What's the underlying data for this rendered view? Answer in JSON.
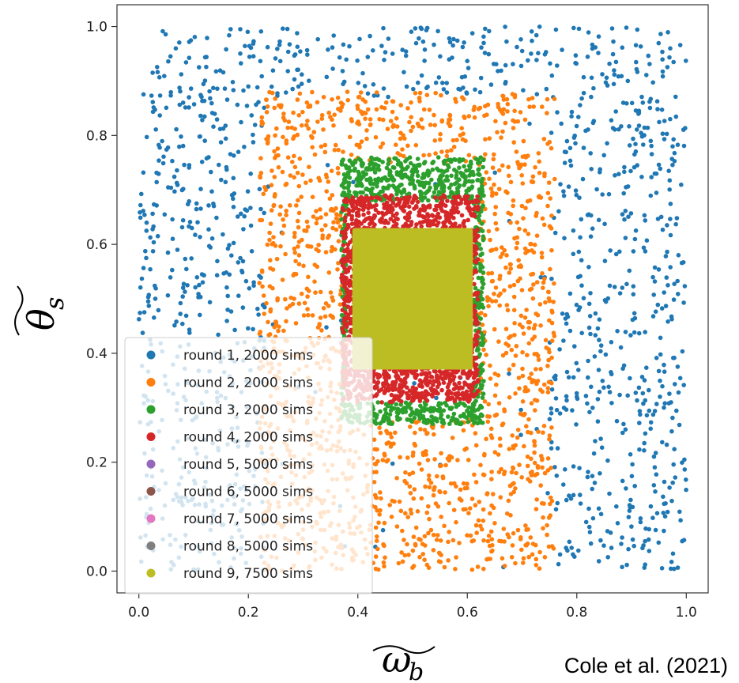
{
  "chart_data": {
    "type": "scatter",
    "title": "",
    "xlabel": "ω_b (tilde)",
    "ylabel": "θ_s (tilde)",
    "xlim": [
      -0.04,
      1.04
    ],
    "ylim": [
      -0.04,
      1.04
    ],
    "xticks": [
      "0.0",
      "0.2",
      "0.4",
      "0.6",
      "0.8",
      "1.0"
    ],
    "yticks": [
      "0.0",
      "0.2",
      "0.4",
      "0.6",
      "0.8",
      "1.0"
    ],
    "grid": false,
    "legend_position": "lower-left",
    "series": [
      {
        "name": "round 1, 2000 sims",
        "color": "#1f77b4",
        "n_points": 2000,
        "x_range": [
          0.0,
          1.0
        ],
        "y_range": [
          0.0,
          1.0
        ]
      },
      {
        "name": "round 2, 2000 sims",
        "color": "#ff7f0e",
        "n_points": 2000,
        "x_range": [
          0.22,
          0.76
        ],
        "y_range": [
          0.0,
          0.88
        ]
      },
      {
        "name": "round 3, 2000 sims",
        "color": "#2ca02c",
        "n_points": 2000,
        "x_range": [
          0.37,
          0.63
        ],
        "y_range": [
          0.27,
          0.76
        ]
      },
      {
        "name": "round 4, 2000 sims",
        "color": "#d62728",
        "n_points": 2000,
        "x_range": [
          0.37,
          0.62
        ],
        "y_range": [
          0.31,
          0.69
        ]
      },
      {
        "name": "round 5, 5000 sims",
        "color": "#9467bd",
        "n_points": 5000,
        "x_range": [
          0.39,
          0.61
        ],
        "y_range": [
          0.37,
          0.63
        ]
      },
      {
        "name": "round 6, 5000 sims",
        "color": "#8c564b",
        "n_points": 5000,
        "x_range": [
          0.39,
          0.61
        ],
        "y_range": [
          0.37,
          0.63
        ]
      },
      {
        "name": "round 7, 5000 sims",
        "color": "#e377c2",
        "n_points": 5000,
        "x_range": [
          0.39,
          0.61
        ],
        "y_range": [
          0.37,
          0.63
        ]
      },
      {
        "name": "round 8, 5000 sims",
        "color": "#7f7f7f",
        "n_points": 5000,
        "x_range": [
          0.39,
          0.61
        ],
        "y_range": [
          0.37,
          0.63
        ]
      },
      {
        "name": "round 9, 7500 sims",
        "color": "#bcbd22",
        "n_points": 7500,
        "x_range": [
          0.39,
          0.61
        ],
        "y_range": [
          0.37,
          0.63
        ]
      }
    ]
  },
  "credit": "Cole et al. (2021)"
}
